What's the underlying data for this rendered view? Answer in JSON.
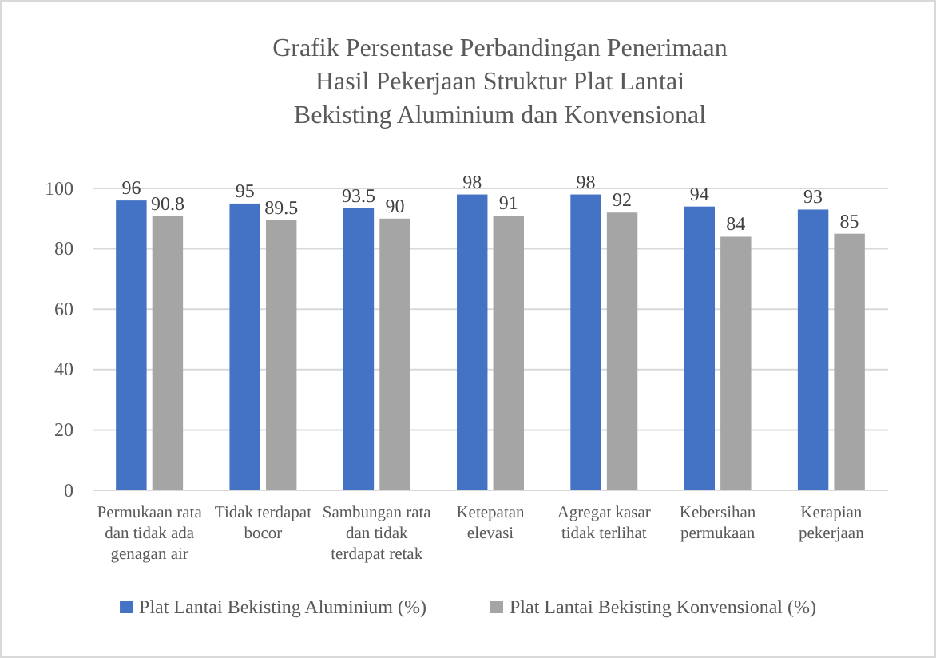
{
  "chart_data": {
    "type": "bar",
    "title": "Grafik Persentase Perbandingan Penerimaan\nHasil Pekerjaan Struktur Plat Lantai\nBekisting Aluminium dan Konvensional",
    "categories": [
      "Permukaan rata dan tidak ada genagan air",
      "Tidak terdapat bocor",
      "Sambungan rata dan tidak terdapat retak",
      "Ketepatan elevasi",
      "Agregat kasar tidak terlihat",
      "Kebersihan permukaan",
      "Kerapian pekerjaan"
    ],
    "series": [
      {
        "name": "Plat Lantai Bekisting Aluminium (%)",
        "color": "#4472c4",
        "values": [
          96,
          95,
          93.5,
          98,
          98,
          94,
          93
        ]
      },
      {
        "name": "Plat Lantai Bekisting Konvensional (%)",
        "color": "#a5a5a5",
        "values": [
          90.8,
          89.5,
          90,
          91,
          92,
          84,
          85
        ]
      }
    ],
    "ylim": [
      0,
      100
    ],
    "yticks": [
      0,
      20,
      40,
      60,
      80,
      100
    ],
    "grid": "y",
    "legend": "bottom",
    "data_labels": true
  }
}
